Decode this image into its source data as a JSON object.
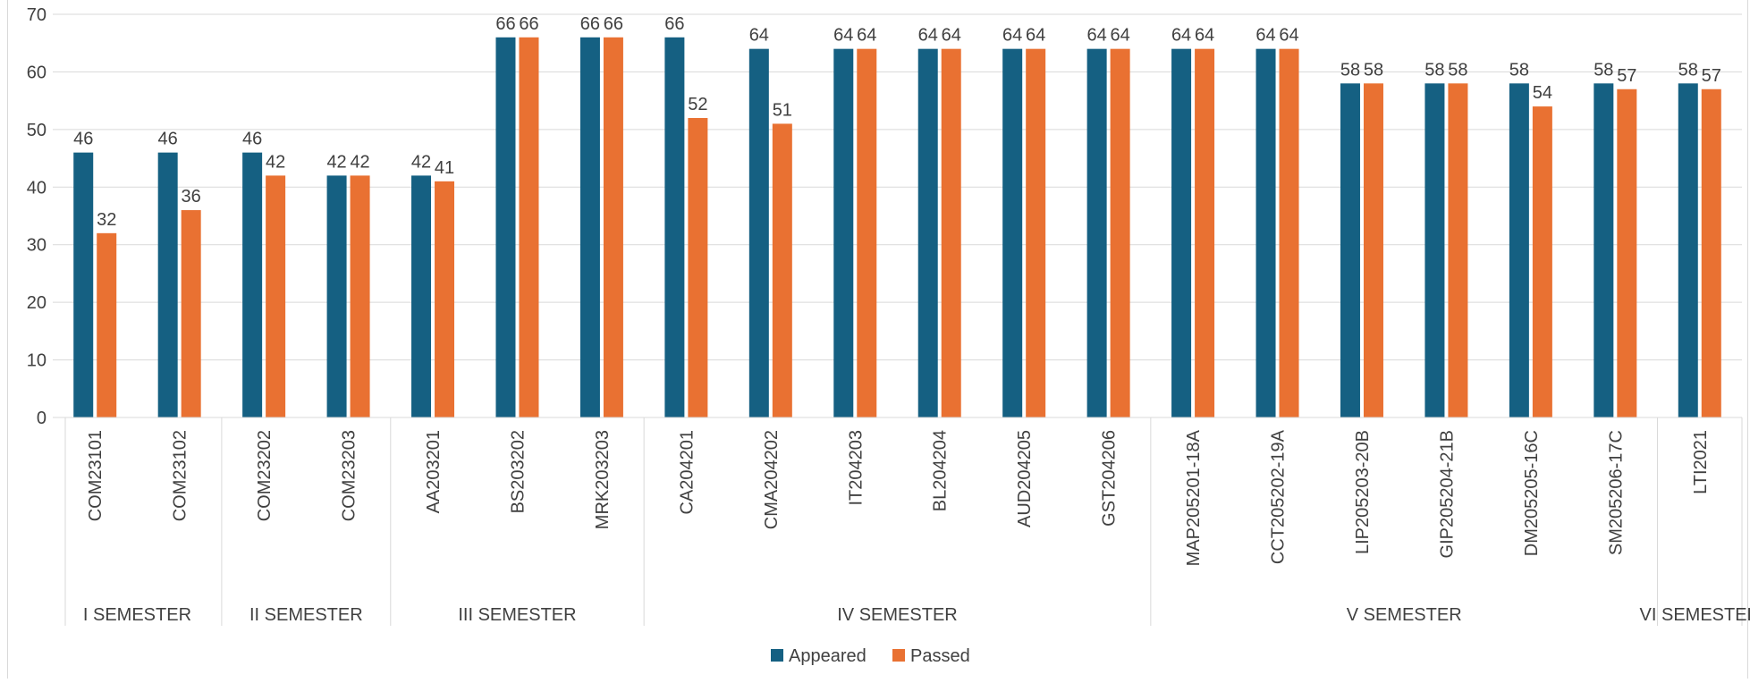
{
  "chart_data": {
    "type": "bar",
    "title": "",
    "xlabel": "",
    "ylabel": "",
    "ylim": [
      0,
      70
    ],
    "yticks": [
      "0",
      "10",
      "20",
      "30",
      "40",
      "50",
      "60",
      "70"
    ],
    "grid": true,
    "legend_position": "bottom",
    "categories": [
      "COM23101",
      "COM23102",
      "COM23202",
      "COM23203",
      "AA203201",
      "BS203202",
      "MRK203203",
      "CA204201",
      "CMA204202",
      "IT204203",
      "BL204204",
      "AUD204205",
      "GST204206",
      "MAP205201-18A",
      "CCT205202-19A",
      "LIP205203-20B",
      "GIP205204-21B",
      "DM205205-16C",
      "SM205206-17C",
      "LTI2021"
    ],
    "groups": [
      {
        "label": "I SEMESTER",
        "count": 2
      },
      {
        "label": "II SEMESTER",
        "count": 2
      },
      {
        "label": "III SEMESTER",
        "count": 3
      },
      {
        "label": "IV SEMESTER",
        "count": 6
      },
      {
        "label": "V SEMESTER",
        "count": 6
      },
      {
        "label": "VI SEMESTER",
        "count": 1
      }
    ],
    "series": [
      {
        "name": "Appeared",
        "color": "#156082",
        "values": [
          46,
          46,
          46,
          42,
          42,
          66,
          66,
          66,
          64,
          64,
          64,
          64,
          64,
          64,
          64,
          58,
          58,
          58,
          58,
          58
        ]
      },
      {
        "name": "Passed",
        "color": "#E97132",
        "values": [
          32,
          36,
          42,
          42,
          41,
          66,
          66,
          52,
          51,
          64,
          64,
          64,
          64,
          64,
          64,
          58,
          58,
          54,
          57,
          57
        ]
      }
    ]
  }
}
